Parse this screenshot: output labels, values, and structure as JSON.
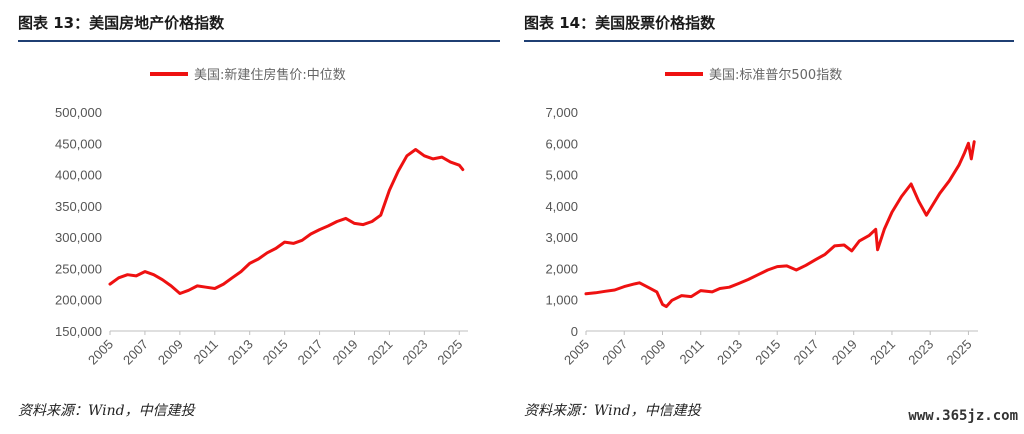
{
  "panels": [
    {
      "title": "图表 13：美国房地产价格指数",
      "source": "资料来源：Wind，中信建投"
    },
    {
      "title": "图表 14：美国股票价格指数",
      "source": "资料来源：Wind，中信建投"
    }
  ],
  "watermark": "www.365jz.com",
  "line_color": "#ee1111",
  "rule_color": "#1f3f73",
  "chart_data": [
    {
      "type": "line",
      "title": "",
      "xlabel": "",
      "ylabel": "",
      "series": [
        {
          "name": "美国:新建住房售价:中位数",
          "x": [
            2005.0,
            2005.5,
            2006.0,
            2006.5,
            2007.0,
            2007.5,
            2008.0,
            2008.5,
            2009.0,
            2009.5,
            2010.0,
            2010.5,
            2011.0,
            2011.5,
            2012.0,
            2012.5,
            2013.0,
            2013.5,
            2014.0,
            2014.5,
            2015.0,
            2015.5,
            2016.0,
            2016.5,
            2017.0,
            2017.5,
            2018.0,
            2018.5,
            2019.0,
            2019.5,
            2020.0,
            2020.5,
            2021.0,
            2021.5,
            2022.0,
            2022.5,
            2023.0,
            2023.5,
            2024.0,
            2024.5,
            2025.0,
            2025.2
          ],
          "values": [
            225000,
            235000,
            240000,
            238000,
            245000,
            240000,
            232000,
            222000,
            210000,
            215000,
            222000,
            220000,
            218000,
            225000,
            235000,
            245000,
            258000,
            265000,
            275000,
            282000,
            292000,
            290000,
            295000,
            305000,
            312000,
            318000,
            325000,
            330000,
            322000,
            320000,
            325000,
            335000,
            375000,
            405000,
            430000,
            440000,
            430000,
            425000,
            428000,
            420000,
            415000,
            408000
          ]
        }
      ],
      "xlim": [
        2005,
        2025.5
      ],
      "ylim": [
        150000,
        500000
      ],
      "x_ticks": [
        "2005",
        "2007",
        "2009",
        "2011",
        "2013",
        "2015",
        "2017",
        "2019",
        "2021",
        "2023",
        "2025"
      ],
      "y_ticks": [
        "150,000",
        "200,000",
        "250,000",
        "300,000",
        "350,000",
        "400,000",
        "450,000",
        "500,000"
      ],
      "y_tick_values": [
        150000,
        200000,
        250000,
        300000,
        350000,
        400000,
        450000,
        500000
      ],
      "grid": false,
      "legend_position": "top-center"
    },
    {
      "type": "line",
      "title": "",
      "xlabel": "",
      "ylabel": "",
      "series": [
        {
          "name": "美国:标准普尔500指数",
          "x": [
            2005.0,
            2005.5,
            2006.0,
            2006.5,
            2007.0,
            2007.5,
            2007.8,
            2008.3,
            2008.7,
            2009.0,
            2009.2,
            2009.5,
            2010.0,
            2010.5,
            2011.0,
            2011.6,
            2012.0,
            2012.5,
            2013.0,
            2013.5,
            2014.0,
            2014.5,
            2015.0,
            2015.5,
            2016.0,
            2016.5,
            2017.0,
            2017.5,
            2018.0,
            2018.5,
            2018.9,
            2019.3,
            2019.8,
            2020.15,
            2020.25,
            2020.6,
            2021.0,
            2021.5,
            2022.0,
            2022.4,
            2022.8,
            2023.0,
            2023.5,
            2024.0,
            2024.5,
            2024.8,
            2025.0,
            2025.15,
            2025.3
          ],
          "values": [
            1190,
            1220,
            1270,
            1310,
            1420,
            1500,
            1540,
            1380,
            1250,
            850,
            780,
            980,
            1130,
            1100,
            1290,
            1250,
            1360,
            1400,
            1520,
            1650,
            1800,
            1950,
            2060,
            2080,
            1950,
            2100,
            2280,
            2450,
            2720,
            2750,
            2560,
            2880,
            3050,
            3250,
            2600,
            3250,
            3800,
            4300,
            4700,
            4150,
            3700,
            3900,
            4400,
            4800,
            5300,
            5700,
            6000,
            5500,
            6050
          ]
        }
      ],
      "xlim": [
        2005,
        2025.5
      ],
      "ylim": [
        0,
        7000
      ],
      "x_ticks": [
        "2005",
        "2007",
        "2009",
        "2011",
        "2013",
        "2015",
        "2017",
        "2019",
        "2021",
        "2023",
        "2025"
      ],
      "y_ticks": [
        "0",
        "1,000",
        "2,000",
        "3,000",
        "4,000",
        "5,000",
        "6,000",
        "7,000"
      ],
      "y_tick_values": [
        0,
        1000,
        2000,
        3000,
        4000,
        5000,
        6000,
        7000
      ],
      "grid": false,
      "legend_position": "top-center"
    }
  ]
}
